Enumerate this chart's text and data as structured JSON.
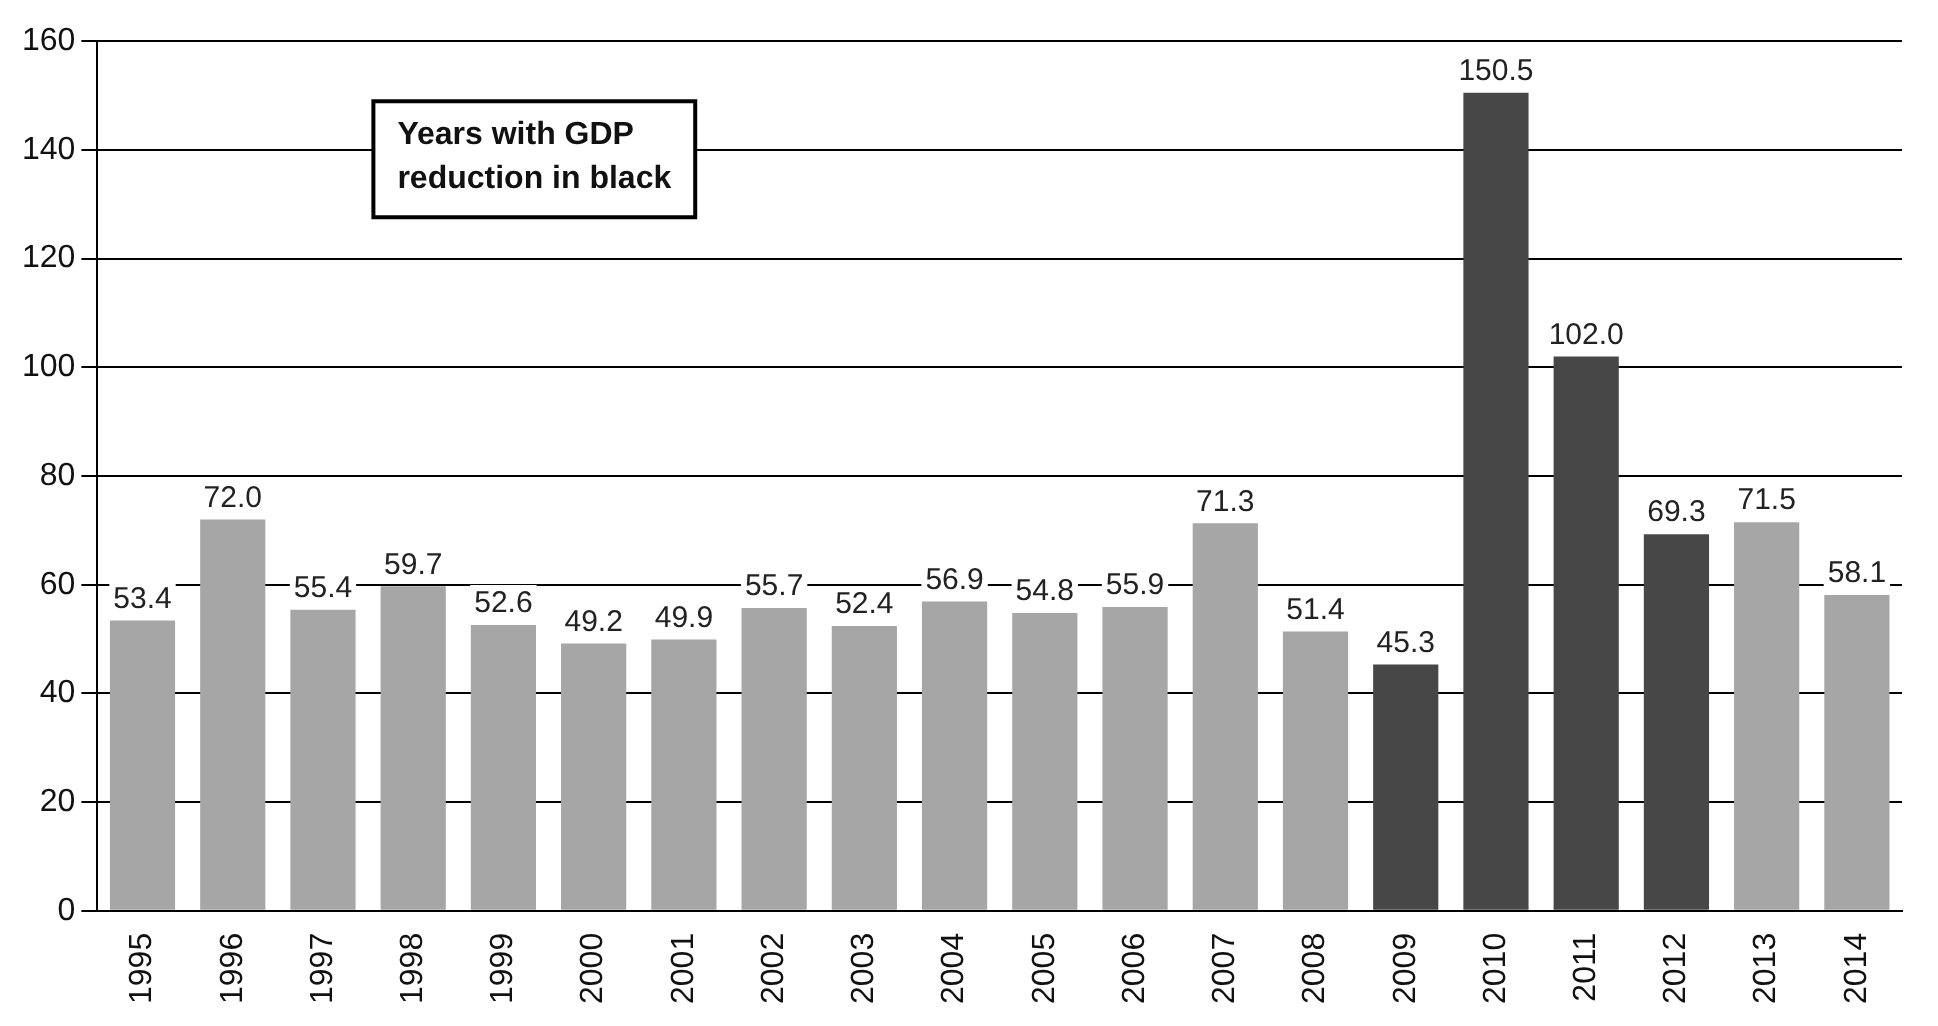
{
  "chart_data": {
    "type": "bar",
    "categories": [
      "1995",
      "1996",
      "1997",
      "1998",
      "1999",
      "2000",
      "2001",
      "2002",
      "2003",
      "2004",
      "2005",
      "2006",
      "2007",
      "2008",
      "2009",
      "2010",
      "2011",
      "2012",
      "2013",
      "2014"
    ],
    "values": [
      53.4,
      72.0,
      55.4,
      59.7,
      52.6,
      49.2,
      49.9,
      55.7,
      52.4,
      56.9,
      54.8,
      55.9,
      71.3,
      51.4,
      45.3,
      150.5,
      102.0,
      69.3,
      71.5,
      58.1
    ],
    "value_labels": [
      "53.4",
      "72.0",
      "55.4",
      "59.7",
      "52.6",
      "49.2",
      "49.9",
      "55.7",
      "52.4",
      "56.9",
      "54.8",
      "55.9",
      "71.3",
      "51.4",
      "45.3",
      "150.5",
      "102.0",
      "69.3",
      "71.5",
      "58.1"
    ],
    "colors": [
      "#a6a6a6",
      "#a6a6a6",
      "#a6a6a6",
      "#a6a6a6",
      "#a6a6a6",
      "#a6a6a6",
      "#a6a6a6",
      "#a6a6a6",
      "#a6a6a6",
      "#a6a6a6",
      "#a6a6a6",
      "#a6a6a6",
      "#a6a6a6",
      "#a6a6a6",
      "#474747",
      "#474747",
      "#474747",
      "#474747",
      "#a6a6a6",
      "#a6a6a6"
    ],
    "ylim": [
      0,
      160
    ],
    "yticks": [
      0,
      20,
      40,
      60,
      80,
      100,
      120,
      140,
      160
    ],
    "grid": "y",
    "legend": false,
    "annotations": [
      "Years with GDP reduction in black"
    ]
  }
}
